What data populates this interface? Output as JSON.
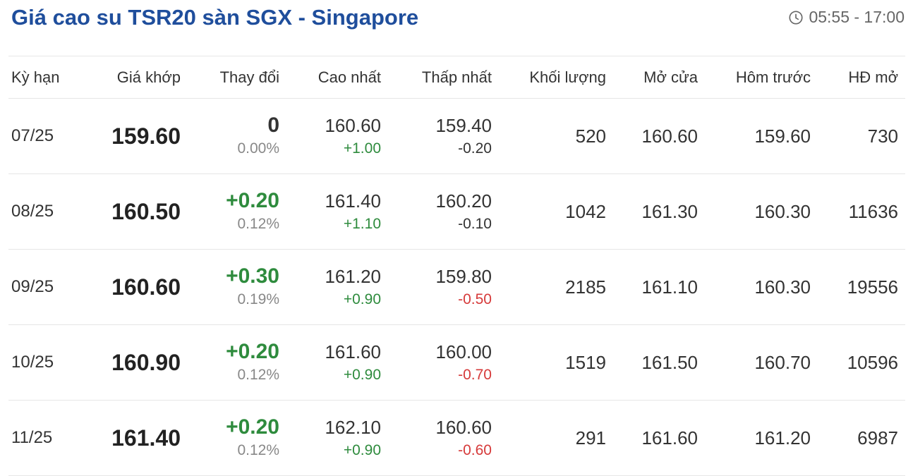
{
  "header": {
    "title": "Giá cao su TSR20 sàn SGX - Singapore",
    "time_range": "05:55 - 17:00",
    "clock_icon": "clock-icon"
  },
  "colors": {
    "title": "#1f4e9c",
    "up": "#2e8b3d",
    "down": "#d63a3a",
    "neutral": "#333333",
    "muted": "#888888"
  },
  "table": {
    "columns": [
      "Kỳ hạn",
      "Giá khớp",
      "Thay đổi",
      "Cao nhất",
      "Thấp nhất",
      "Khối lượng",
      "Mở cửa",
      "Hôm trước",
      "HĐ mở"
    ],
    "rows": [
      {
        "term": "07/25",
        "price": "159.60",
        "change": "0",
        "change_pct": "0.00%",
        "change_dir": "neutral",
        "high": "160.60",
        "high_diff": "+1.00",
        "high_dir": "up",
        "low": "159.40",
        "low_diff": "-0.20",
        "low_dir": "neutral",
        "volume": "520",
        "open": "160.60",
        "prev": "159.60",
        "open_interest": "730"
      },
      {
        "term": "08/25",
        "price": "160.50",
        "change": "+0.20",
        "change_pct": "0.12%",
        "change_dir": "up",
        "high": "161.40",
        "high_diff": "+1.10",
        "high_dir": "up",
        "low": "160.20",
        "low_diff": "-0.10",
        "low_dir": "neutral",
        "volume": "1042",
        "open": "161.30",
        "prev": "160.30",
        "open_interest": "11636"
      },
      {
        "term": "09/25",
        "price": "160.60",
        "change": "+0.30",
        "change_pct": "0.19%",
        "change_dir": "up",
        "high": "161.20",
        "high_diff": "+0.90",
        "high_dir": "up",
        "low": "159.80",
        "low_diff": "-0.50",
        "low_dir": "down",
        "volume": "2185",
        "open": "161.10",
        "prev": "160.30",
        "open_interest": "19556"
      },
      {
        "term": "10/25",
        "price": "160.90",
        "change": "+0.20",
        "change_pct": "0.12%",
        "change_dir": "up",
        "high": "161.60",
        "high_diff": "+0.90",
        "high_dir": "up",
        "low": "160.00",
        "low_diff": "-0.70",
        "low_dir": "down",
        "volume": "1519",
        "open": "161.50",
        "prev": "160.70",
        "open_interest": "10596"
      },
      {
        "term": "11/25",
        "price": "161.40",
        "change": "+0.20",
        "change_pct": "0.12%",
        "change_dir": "up",
        "high": "162.10",
        "high_diff": "+0.90",
        "high_dir": "up",
        "low": "160.60",
        "low_diff": "-0.60",
        "low_dir": "down",
        "volume": "291",
        "open": "161.60",
        "prev": "161.20",
        "open_interest": "6987"
      }
    ]
  }
}
